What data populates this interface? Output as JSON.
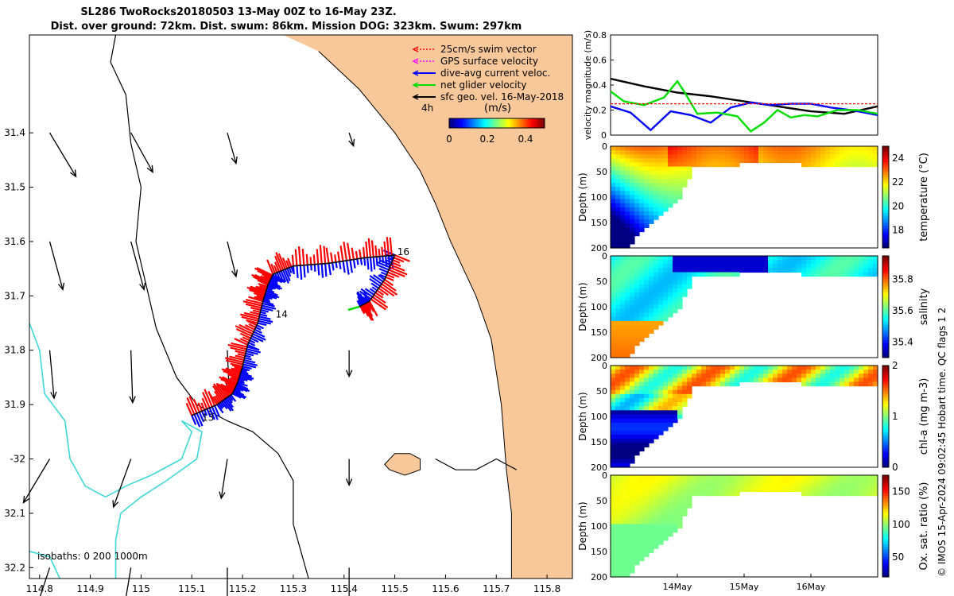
{
  "header": {
    "line1": "SL286 TwoRocks20180503 13-May 00Z to 16-May 23Z.",
    "line2": "Dist. over ground: 72km. Dist. swum: 86km. Mission DOG: 323km. Swum: 297km"
  },
  "credit": "© IMOS 15-Apr-2024 09:02:45 Hobart time. QC flags 1  2",
  "colors": {
    "land": "#f9c89a",
    "coast": "#000000",
    "isobath": "#3fd8d8",
    "swim_vector": "#ff0000",
    "gps_velocity": "#ff00ff",
    "dive_avg": "#0000ff",
    "net_glider": "#00dd00",
    "geo_vel": "#000000"
  },
  "chart_data": [
    {
      "type": "map",
      "xlim": [
        114.78,
        115.85
      ],
      "ylim": [
        -32.22,
        -31.22
      ],
      "x_ticks": [
        114.8,
        114.9,
        115,
        115.1,
        115.2,
        115.3,
        115.4,
        115.5,
        115.6,
        115.7,
        115.8
      ],
      "x_tick_labels": [
        "114.8",
        "114.9",
        "115",
        "115.1",
        "115.2",
        "115.3",
        "115.4",
        "115.5",
        "115.6",
        "115.7",
        "115.8"
      ],
      "y_ticks": [
        -31.4,
        -31.5,
        -31.6,
        -31.7,
        -31.8,
        -31.9,
        -32.0,
        -32.1,
        -32.2
      ],
      "y_tick_labels": [
        "31.4",
        "31.5",
        "31.6",
        "31.7",
        "31.8",
        "31.9",
        "-32",
        "32.1",
        "32.2"
      ],
      "legend": [
        {
          "label": "25cm/s swim vector",
          "color": "#ff0000",
          "style": "dotted"
        },
        {
          "label": "GPS surface velocity",
          "color": "#ff00ff",
          "style": "dotted"
        },
        {
          "label": "dive-avg current veloc.",
          "color": "#0000ff",
          "style": "solid"
        },
        {
          "label": "net glider velocity",
          "color": "#00dd00",
          "style": "solid"
        },
        {
          "label": "sfc geo. vel. 16-May-2018",
          "color": "#000000",
          "style": "solid"
        }
      ],
      "legend_placement": "top-right",
      "colorbar": {
        "label": "(m/s)",
        "ticks": [
          0,
          0.2,
          0.4
        ],
        "range": [
          0,
          0.5
        ]
      },
      "scale_label": "4h",
      "isobaths_label": "isobaths: 0   200  1000m",
      "day_labels": [
        {
          "text": "13",
          "lon": 115.12,
          "lat": -31.93
        },
        {
          "text": "14",
          "lon": 115.265,
          "lat": -31.74
        },
        {
          "text": "16",
          "lon": 115.505,
          "lat": -31.625
        }
      ],
      "track": [
        [
          115.1,
          -31.92
        ],
        [
          115.15,
          -31.9
        ],
        [
          115.18,
          -31.88
        ],
        [
          115.19,
          -31.86
        ],
        [
          115.2,
          -31.83
        ],
        [
          115.21,
          -31.79
        ],
        [
          115.23,
          -31.75
        ],
        [
          115.24,
          -31.71
        ],
        [
          115.25,
          -31.68
        ],
        [
          115.26,
          -31.66
        ],
        [
          115.3,
          -31.645
        ],
        [
          115.37,
          -31.64
        ],
        [
          115.44,
          -31.63
        ],
        [
          115.5,
          -31.625
        ],
        [
          115.48,
          -31.67
        ],
        [
          115.45,
          -31.71
        ],
        [
          115.43,
          -31.72
        ]
      ],
      "geo_arrows": [
        {
          "lon": 114.82,
          "lat": -31.4,
          "u": 0.03,
          "v": -0.05
        },
        {
          "lon": 114.98,
          "lat": -31.4,
          "u": 0.025,
          "v": -0.045
        },
        {
          "lon": 115.17,
          "lat": -31.4,
          "u": 0.01,
          "v": -0.035
        },
        {
          "lon": 115.41,
          "lat": -31.4,
          "u": 0.005,
          "v": -0.015
        },
        {
          "lon": 114.82,
          "lat": -31.6,
          "u": 0.015,
          "v": -0.055
        },
        {
          "lon": 114.98,
          "lat": -31.6,
          "u": 0.015,
          "v": -0.055
        },
        {
          "lon": 115.17,
          "lat": -31.6,
          "u": 0.01,
          "v": -0.04
        },
        {
          "lon": 114.82,
          "lat": -31.8,
          "u": 0.005,
          "v": -0.055
        },
        {
          "lon": 114.98,
          "lat": -31.8,
          "u": 0.002,
          "v": -0.06
        },
        {
          "lon": 115.17,
          "lat": -31.8,
          "u": 0.002,
          "v": -0.045
        },
        {
          "lon": 115.41,
          "lat": -31.8,
          "u": 0,
          "v": -0.03
        },
        {
          "lon": 114.82,
          "lat": -32.0,
          "u": -0.03,
          "v": -0.05
        },
        {
          "lon": 114.98,
          "lat": -32.0,
          "u": -0.02,
          "v": -0.055
        },
        {
          "lon": 115.17,
          "lat": -32.0,
          "u": -0.007,
          "v": -0.045
        },
        {
          "lon": 115.41,
          "lat": -32.0,
          "u": 0,
          "v": -0.03
        },
        {
          "lon": 114.82,
          "lat": -32.2,
          "u": -0.02,
          "v": -0.06
        },
        {
          "lon": 114.98,
          "lat": -32.2,
          "u": -0.01,
          "v": -0.06
        },
        {
          "lon": 115.17,
          "lat": -32.2,
          "u": 0,
          "v": -0.05
        },
        {
          "lon": 115.41,
          "lat": -32.2,
          "u": 0,
          "v": -0.04
        }
      ]
    },
    {
      "type": "line",
      "ylabel": "velocity magnitude (m/s)",
      "ylim": [
        0,
        0.8
      ],
      "y_ticks": [
        0,
        0.2,
        0.4,
        0.6,
        0.8
      ],
      "x_range_days": [
        13,
        17
      ],
      "series": [
        {
          "color": "#000000",
          "points": [
            [
              13,
              0.45
            ],
            [
              13.5,
              0.39
            ],
            [
              14,
              0.34
            ],
            [
              14.5,
              0.31
            ],
            [
              15,
              0.27
            ],
            [
              15.5,
              0.23
            ],
            [
              16,
              0.19
            ],
            [
              16.5,
              0.17
            ],
            [
              17,
              0.23
            ]
          ]
        },
        {
          "color": "#0000ff",
          "points": [
            [
              13,
              0.23
            ],
            [
              13.3,
              0.18
            ],
            [
              13.6,
              0.04
            ],
            [
              13.9,
              0.19
            ],
            [
              14.2,
              0.16
            ],
            [
              14.5,
              0.1
            ],
            [
              14.8,
              0.22
            ],
            [
              15.1,
              0.26
            ],
            [
              15.4,
              0.24
            ],
            [
              15.7,
              0.25
            ],
            [
              16,
              0.25
            ],
            [
              16.3,
              0.22
            ],
            [
              16.6,
              0.2
            ],
            [
              17,
              0.16
            ]
          ]
        },
        {
          "color": "#00dd00",
          "points": [
            [
              13,
              0.35
            ],
            [
              13.2,
              0.27
            ],
            [
              13.5,
              0.24
            ],
            [
              13.8,
              0.3
            ],
            [
              14,
              0.43
            ],
            [
              14.1,
              0.35
            ],
            [
              14.3,
              0.17
            ],
            [
              14.6,
              0.18
            ],
            [
              14.9,
              0.15
            ],
            [
              15.1,
              0.03
            ],
            [
              15.3,
              0.1
            ],
            [
              15.5,
              0.2
            ],
            [
              15.7,
              0.14
            ],
            [
              15.9,
              0.16
            ],
            [
              16.1,
              0.15
            ],
            [
              16.4,
              0.2
            ],
            [
              16.7,
              0.2
            ],
            [
              17,
              0.17
            ]
          ]
        },
        {
          "color": "#ff0000",
          "points": [
            [
              13,
              0.25
            ],
            [
              17,
              0.25
            ]
          ]
        }
      ]
    },
    {
      "type": "heatmap",
      "name": "temperature",
      "cbar_label": "temperature (°C)",
      "clim": [
        16.5,
        25
      ],
      "cbar_ticks": [
        18,
        20,
        22,
        24
      ],
      "ylabel": "Depth (m)",
      "ylim": [
        0,
        200
      ],
      "y_ticks": [
        0,
        50,
        100,
        150,
        200
      ]
    },
    {
      "type": "heatmap",
      "name": "salinity",
      "cbar_label": "salinity",
      "clim": [
        35.3,
        35.95
      ],
      "cbar_ticks": [
        35.4,
        35.6,
        35.8
      ],
      "ylabel": "Depth (m)",
      "ylim": [
        0,
        200
      ],
      "y_ticks": [
        0,
        50,
        100,
        150,
        200
      ]
    },
    {
      "type": "heatmap",
      "name": "chla",
      "cbar_label": "chl-a (mg m-3)",
      "clim": [
        0,
        2
      ],
      "cbar_ticks": [
        0,
        1,
        2
      ],
      "ylabel": "Depth (m)",
      "ylim": [
        0,
        200
      ],
      "y_ticks": [
        0,
        50,
        100,
        150,
        200
      ]
    },
    {
      "type": "heatmap",
      "name": "oxsat",
      "cbar_label": "Ox. sat. ratio (%)",
      "clim": [
        20,
        175
      ],
      "cbar_ticks": [
        50,
        100,
        150
      ],
      "ylabel": "Depth (m)",
      "ylim": [
        0,
        200
      ],
      "y_ticks": [
        0,
        50,
        100,
        150,
        200
      ],
      "x_ticks": [
        14,
        15,
        16
      ],
      "x_tick_labels": [
        "14May",
        "15May",
        "16May"
      ]
    }
  ]
}
